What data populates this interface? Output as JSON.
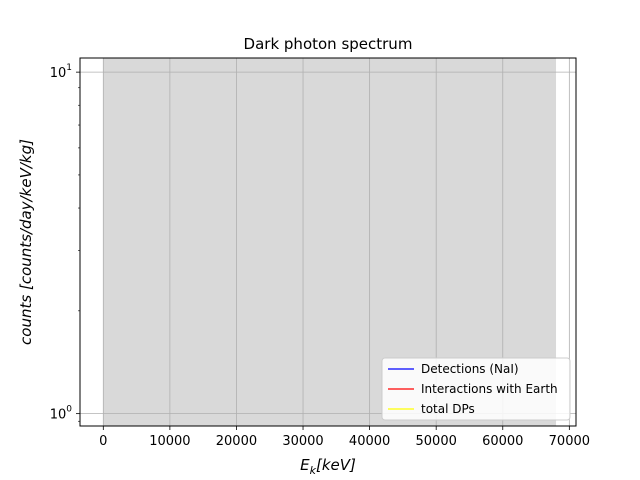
{
  "chart_data": {
    "type": "line",
    "title": "Dark photon spectrum",
    "xlabel": "E_k[keV]",
    "ylabel": "counts [counts/day/keV/kg]",
    "xlim": [
      -3500,
      71000
    ],
    "ylim": [
      0.92,
      11.0
    ],
    "yscale": "log",
    "grid": true,
    "x_ticks": [
      0,
      10000,
      20000,
      30000,
      40000,
      50000,
      60000,
      70000
    ],
    "y_ticks": [
      {
        "value": 1,
        "base": "10",
        "exp": "0"
      },
      {
        "value": 10,
        "base": "10",
        "exp": "1"
      }
    ],
    "shaded_region": {
      "x": [
        0,
        68000
      ],
      "color": "#d9d9d9"
    },
    "legend_location": "lower-right",
    "series": [
      {
        "name": "Detections (NaI)",
        "color": "#0000ff",
        "x": [],
        "y": []
      },
      {
        "name": "Interactions with Earth",
        "color": "#ff0000",
        "x": [],
        "y": []
      },
      {
        "name": "total DPs",
        "color": "#ffff00",
        "x": [],
        "y": []
      }
    ]
  }
}
